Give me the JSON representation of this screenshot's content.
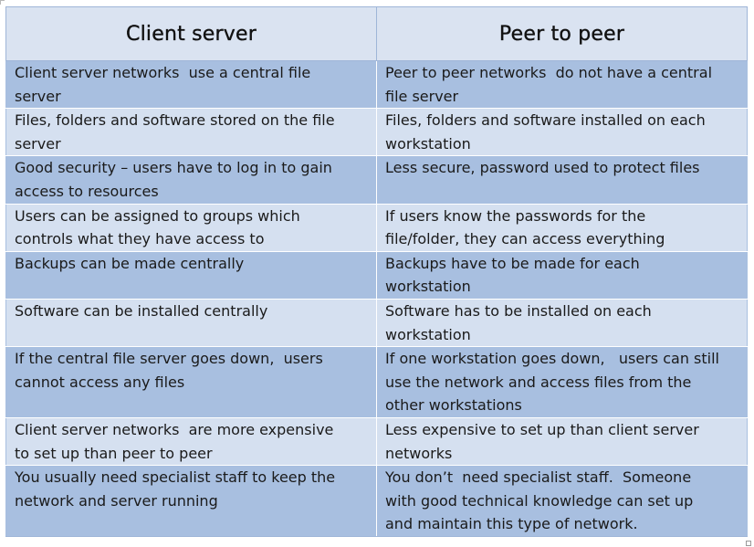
{
  "table": {
    "headers": [
      "Client server",
      "Peer to peer"
    ],
    "rows": [
      {
        "client": [
          "Client server networks  use a central file",
          "server"
        ],
        "peer": [
          "Peer to peer networks  do not have a central",
          "file server"
        ]
      },
      {
        "client": [
          "Files, folders and software stored on the file",
          "server"
        ],
        "peer": [
          "Files, folders and software installed on each",
          "workstation"
        ]
      },
      {
        "client": [
          "Good security – users have to log in to gain",
          "access to resources"
        ],
        "peer": [
          "Less secure, password used to protect files"
        ]
      },
      {
        "client": [
          "Users can be assigned to groups which",
          "controls what they have access to"
        ],
        "peer": [
          "If users know the passwords for the",
          "file/folder, they can access everything"
        ]
      },
      {
        "client": [
          "Backups can be made centrally"
        ],
        "peer": [
          "Backups have to be made for each",
          "workstation"
        ]
      },
      {
        "client": [
          "Software can be installed centrally"
        ],
        "peer": [
          "Software has to be installed on each",
          "workstation"
        ]
      },
      {
        "client": [
          "If the central file server goes down,  users",
          "cannot access any files"
        ],
        "peer": [
          "If one workstation goes down,   users can still",
          "use the network and access files from the",
          "other workstations"
        ]
      },
      {
        "client": [
          "Client server networks  are more expensive",
          "to set up than peer to peer"
        ],
        "peer": [
          "Less expensive to set up than client server",
          "networks"
        ]
      },
      {
        "client": [
          "You usually need specialist staff to keep the",
          "network and server running"
        ],
        "peer": [
          "You don’t  need specialist staff.  Someone",
          "with good technical knowledge can set up",
          "and maintain this type of network."
        ]
      }
    ]
  }
}
